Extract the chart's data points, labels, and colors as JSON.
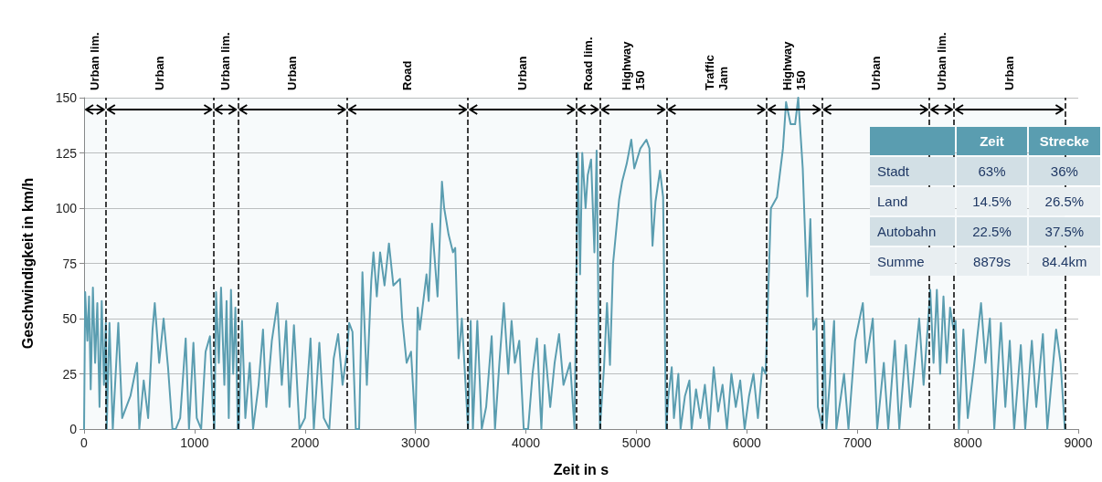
{
  "chart_data": [
    {
      "type": "line",
      "xlabel": "Zeit in s",
      "ylabel": "Geschwindigkeit in km/h",
      "color": "#5a9db0",
      "xlim": [
        0,
        9000
      ],
      "xticks": [
        0,
        1000,
        2000,
        3000,
        4000,
        5000,
        6000,
        7000,
        8000,
        9000
      ],
      "ylim": [
        0,
        150
      ],
      "yticks": [
        0,
        25,
        50,
        75,
        100,
        125,
        150
      ],
      "grid": "y",
      "x": [
        0,
        10,
        30,
        45,
        60,
        80,
        100,
        120,
        140,
        160,
        180,
        197,
        205,
        230,
        260,
        310,
        345,
        420,
        480,
        500,
        540,
        580,
        620,
        640,
        680,
        720,
        760,
        800,
        830,
        870,
        920,
        950,
        990,
        1020,
        1060,
        1100,
        1140,
        1165,
        1180,
        1195,
        1220,
        1240,
        1270,
        1290,
        1310,
        1330,
        1350,
        1370,
        1392,
        1400,
        1430,
        1460,
        1500,
        1530,
        1580,
        1620,
        1650,
        1700,
        1750,
        1790,
        1830,
        1860,
        1900,
        1950,
        2000,
        2050,
        2080,
        2130,
        2170,
        2220,
        2260,
        2300,
        2340,
        2380,
        2400,
        2430,
        2460,
        2490,
        2520,
        2560,
        2600,
        2620,
        2650,
        2680,
        2720,
        2760,
        2800,
        2860,
        2880,
        2920,
        2960,
        3000,
        3020,
        3040,
        3100,
        3120,
        3150,
        3200,
        3240,
        3260,
        3300,
        3340,
        3360,
        3390,
        3420,
        3476,
        3500,
        3520,
        3560,
        3600,
        3640,
        3690,
        3720,
        3760,
        3800,
        3840,
        3870,
        3900,
        3940,
        3980,
        4020,
        4060,
        4100,
        4140,
        4170,
        4220,
        4260,
        4300,
        4340,
        4400,
        4440,
        4470,
        4490,
        4510,
        4540,
        4560,
        4590,
        4620,
        4640,
        4660,
        4670,
        4707,
        4734,
        4761,
        4789,
        4844,
        4871,
        4912,
        4954,
        4981,
        5036,
        5091,
        5118,
        5146,
        5173,
        5214,
        5242,
        5269,
        5290,
        5320,
        5340,
        5380,
        5400,
        5440,
        5480,
        5500,
        5540,
        5580,
        5620,
        5660,
        5700,
        5740,
        5780,
        5820,
        5860,
        5900,
        5940,
        5980,
        6020,
        6060,
        6100,
        6140,
        6170,
        6218,
        6273,
        6327,
        6355,
        6396,
        6437,
        6465,
        6506,
        6547,
        6575,
        6602,
        6630,
        6643,
        6685,
        6700,
        6720,
        6790,
        6810,
        6880,
        6920,
        6980,
        7050,
        7080,
        7140,
        7180,
        7240,
        7280,
        7340,
        7380,
        7440,
        7480,
        7560,
        7600,
        7640,
        7660,
        7690,
        7720,
        7750,
        7780,
        7810,
        7840,
        7870,
        7890,
        7920,
        7960,
        8000,
        8060,
        8120,
        8160,
        8200,
        8240,
        8300,
        8340,
        8380,
        8420,
        8480,
        8520,
        8580,
        8620,
        8680,
        8720,
        8800,
        8840,
        8879
      ],
      "values": [
        0,
        62,
        40,
        60,
        18,
        64,
        30,
        57,
        10,
        58,
        20,
        48,
        0,
        48,
        0,
        48,
        5,
        15,
        30,
        0,
        22,
        5,
        45,
        57,
        30,
        50,
        28,
        0,
        0,
        5,
        41,
        0,
        39,
        5,
        0,
        35,
        42,
        10,
        0,
        62,
        30,
        64,
        20,
        58,
        5,
        63,
        25,
        55,
        0,
        0,
        49,
        5,
        30,
        0,
        20,
        45,
        10,
        40,
        57,
        20,
        49,
        10,
        47,
        0,
        5,
        41,
        0,
        39,
        5,
        0,
        32,
        43,
        20,
        35,
        48,
        44,
        0,
        0,
        71,
        20,
        67,
        80,
        60,
        80,
        65,
        84,
        65,
        68,
        50,
        30,
        35,
        0,
        55,
        45,
        70,
        58,
        93,
        60,
        112,
        100,
        88,
        80,
        82,
        32,
        50,
        0,
        49,
        0,
        49,
        0,
        10,
        42,
        0,
        30,
        57,
        25,
        49,
        30,
        40,
        0,
        0,
        25,
        41,
        0,
        38,
        10,
        30,
        43,
        20,
        30,
        0,
        125,
        70,
        125,
        100,
        115,
        122,
        80,
        126,
        40,
        0,
        28,
        57,
        29,
        75,
        104,
        112,
        120,
        131,
        118,
        127,
        131,
        127,
        83,
        103,
        117,
        105,
        0,
        15,
        28,
        5,
        25,
        0,
        15,
        22,
        0,
        18,
        5,
        20,
        0,
        28,
        8,
        20,
        0,
        25,
        10,
        22,
        0,
        15,
        25,
        5,
        28,
        25,
        100,
        105,
        127,
        148,
        138,
        138,
        150,
        118,
        60,
        95,
        45,
        50,
        10,
        0,
        49,
        0,
        49,
        0,
        25,
        0,
        40,
        57,
        30,
        50,
        0,
        30,
        0,
        40,
        0,
        38,
        10,
        50,
        20,
        48,
        63,
        30,
        63,
        25,
        60,
        30,
        55,
        45,
        49,
        0,
        45,
        5,
        30,
        57,
        30,
        50,
        0,
        48,
        10,
        40,
        0,
        38,
        0,
        40,
        10,
        43,
        0,
        45,
        30,
        0
      ],
      "ref_lines": [
        {
          "axis": "x",
          "value": 197,
          "line_style": "dashed",
          "color": "#000000"
        },
        {
          "axis": "x",
          "value": 1170,
          "line_style": "dashed",
          "color": "#000000"
        },
        {
          "axis": "x",
          "value": 1392,
          "line_style": "dashed",
          "color": "#000000"
        },
        {
          "axis": "x",
          "value": 2380,
          "line_style": "dashed",
          "color": "#000000"
        },
        {
          "axis": "x",
          "value": 3476,
          "line_style": "dashed",
          "color": "#000000"
        },
        {
          "axis": "x",
          "value": 4456,
          "line_style": "dashed",
          "color": "#000000"
        },
        {
          "axis": "x",
          "value": 4670,
          "line_style": "dashed",
          "color": "#000000"
        },
        {
          "axis": "x",
          "value": 5272,
          "line_style": "dashed",
          "color": "#000000"
        },
        {
          "axis": "x",
          "value": 6178,
          "line_style": "dashed",
          "color": "#000000"
        },
        {
          "axis": "x",
          "value": 6680,
          "line_style": "dashed",
          "color": "#000000"
        },
        {
          "axis": "x",
          "value": 7652,
          "line_style": "dashed",
          "color": "#000000"
        },
        {
          "axis": "x",
          "value": 7875,
          "line_style": "dashed",
          "color": "#000000"
        },
        {
          "axis": "x",
          "value": 8879,
          "line_style": "dashed",
          "color": "#000000"
        }
      ],
      "bands": [
        {
          "axis": "x",
          "from": 0,
          "to": 197,
          "label": "Urban lim."
        },
        {
          "axis": "x",
          "from": 197,
          "to": 1170,
          "label": "Urban"
        },
        {
          "axis": "x",
          "from": 1170,
          "to": 1392,
          "label": "Urban lim."
        },
        {
          "axis": "x",
          "from": 1392,
          "to": 2380,
          "label": "Urban"
        },
        {
          "axis": "x",
          "from": 2380,
          "to": 3476,
          "label": "Road"
        },
        {
          "axis": "x",
          "from": 3476,
          "to": 4456,
          "label": "Urban"
        },
        {
          "axis": "x",
          "from": 4456,
          "to": 4670,
          "label": "Road lim."
        },
        {
          "axis": "x",
          "from": 4670,
          "to": 5272,
          "label": "Highway\n150"
        },
        {
          "axis": "x",
          "from": 5272,
          "to": 6178,
          "label": "Traffic\nJam"
        },
        {
          "axis": "x",
          "from": 6178,
          "to": 6680,
          "label": "Highway\n150"
        },
        {
          "axis": "x",
          "from": 6680,
          "to": 7652,
          "label": "Urban"
        },
        {
          "axis": "x",
          "from": 7652,
          "to": 7875,
          "label": "Urban lim."
        },
        {
          "axis": "x",
          "from": 7875,
          "to": 8879,
          "label": "Urban"
        }
      ]
    },
    {
      "type": "other",
      "categories": [
        "Zeit",
        "Strecke"
      ],
      "y_categories": [
        "Stadt",
        "Land",
        "Autobahn",
        "Summe"
      ],
      "cell_labels": [
        [
          "63%",
          "36%"
        ],
        [
          "14.5%",
          "26.5%"
        ],
        [
          "22.5%",
          "37.5%"
        ],
        [
          "8879s",
          "84.4km"
        ]
      ]
    }
  ]
}
